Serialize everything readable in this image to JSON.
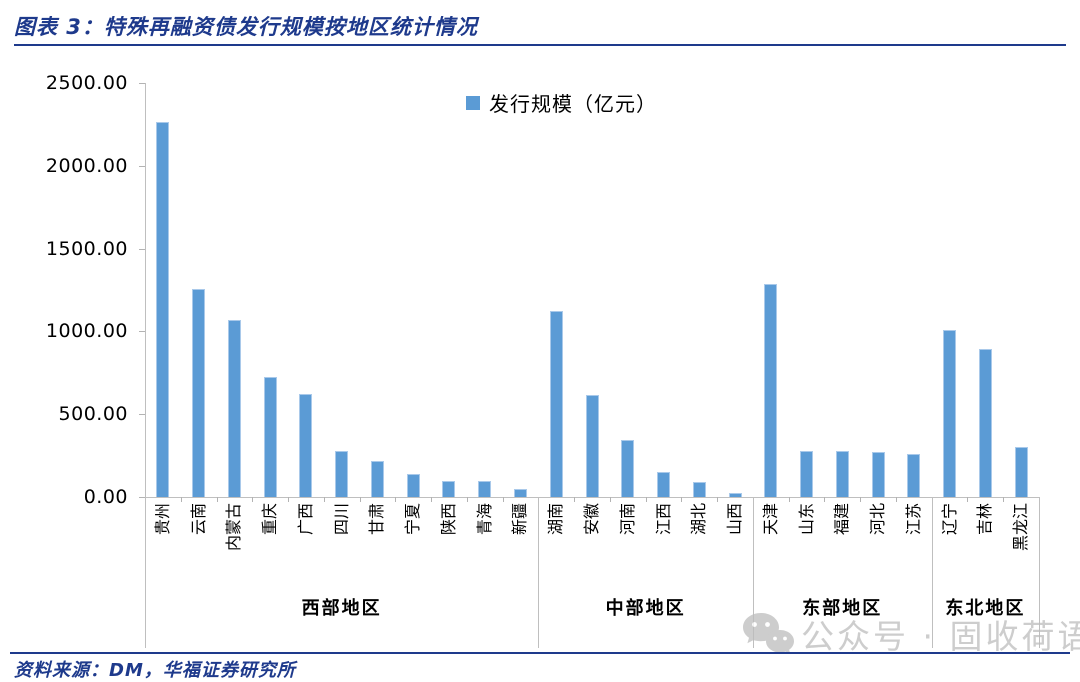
{
  "figure": {
    "title": "图表 3：特殊再融资债发行规模按地区统计情况",
    "source_note": "资料来源：DM，华福证券研究所",
    "watermark_text": "公众号 · 固收荷语"
  },
  "chart_data": {
    "type": "bar",
    "title": "图表 3：特殊再融资债发行规模按地区统计情况",
    "legend": {
      "label": "发行规模（亿元）",
      "position": "top-center"
    },
    "xlabel": "",
    "ylabel": "",
    "ylim": [
      0,
      2500
    ],
    "ytick_step": 500,
    "ytick_labels": [
      "0.00",
      "500.00",
      "1000.00",
      "1500.00",
      "2000.00",
      "2500.00"
    ],
    "grid": false,
    "categories": [
      "贵州",
      "云南",
      "内蒙古",
      "重庆",
      "广西",
      "四川",
      "甘肃",
      "宁夏",
      "陕西",
      "青海",
      "新疆",
      "湖南",
      "安徽",
      "河南",
      "江西",
      "湖北",
      "山西",
      "天津",
      "山东",
      "福建",
      "河北",
      "江苏",
      "辽宁",
      "吉林",
      "黑龙江"
    ],
    "values": [
      2263.8,
      1256.0,
      1067.1,
      726.6,
      623.0,
      276.0,
      216.0,
      139.0,
      97.0,
      95.0,
      51.0,
      1121.8,
      615.4,
      344.8,
      151.0,
      88.0,
      24.0,
      1286.3,
      280.0,
      280.0,
      272.0,
      260.0,
      1006.2,
      892.1,
      300.0
    ],
    "groups": [
      {
        "label": "西部地区",
        "span": 11
      },
      {
        "label": "中部地区",
        "span": 6
      },
      {
        "label": "东部地区",
        "span": 5
      },
      {
        "label": "东北地区",
        "span": 3
      }
    ]
  },
  "colors": {
    "accent": "#1e3a8c",
    "bar": "#5b9bd5",
    "bar_edge": "#a9c9ea",
    "axis": "#bfbfbf",
    "text": "#000000",
    "watermark": "#bdbdbd"
  }
}
